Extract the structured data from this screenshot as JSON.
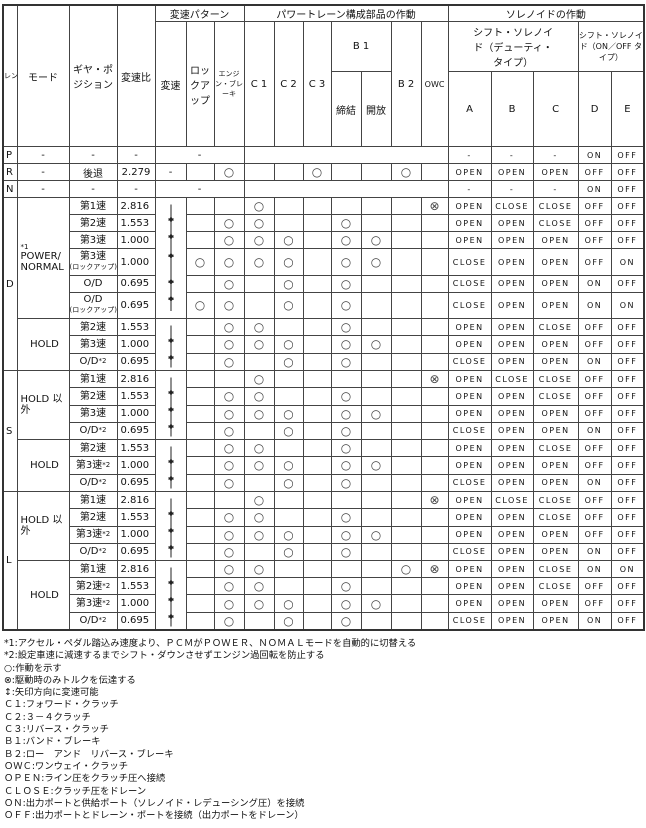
{
  "headers": {
    "range": "レンジ",
    "mode": "モード",
    "gear": "ギヤ・ポジション",
    "ratio": "変速比",
    "shift_pattern": "変速パターン",
    "shift": "変速",
    "lockup": "ロックアップ",
    "engine_brake": "エンジン・ブレーキ",
    "powertrain": "パワートレーン構成部品の作動",
    "c1": "C 1",
    "c2": "C 2",
    "c3": "C 3",
    "b1": "B 1",
    "b1_engage": "締結",
    "b1_release": "開放",
    "b2": "B 2",
    "owc": "OWC",
    "solenoid": "ソレノイドの作動",
    "duty": "シフト・ソレノイド（デューティ・タイプ）",
    "onoff": "シフト・ソレノイド（ON／OFF タイプ）",
    "a": "A",
    "b": "B",
    "c": "C",
    "d": "D",
    "e": "E"
  },
  "simple_rows": [
    {
      "range": "P",
      "mode": "-",
      "gear": "-",
      "ratio": "-",
      "pattern": "-",
      "sol": [
        "-",
        "-",
        "-",
        "ON",
        "OFF"
      ]
    },
    {
      "range": "R",
      "mode": "-",
      "gear": "後退",
      "ratio": "2.279",
      "shift": "-",
      "lockup": "",
      "eb": "○",
      "ops": [
        "",
        "",
        "○",
        "",
        "",
        "○",
        ""
      ],
      "sol": [
        "OPEN",
        "OPEN",
        "OPEN",
        "OFF",
        "OFF"
      ]
    },
    {
      "range": "N",
      "mode": "-",
      "gear": "-",
      "ratio": "-",
      "pattern": "-",
      "sol": [
        "-",
        "-",
        "-",
        "ON",
        "OFF"
      ]
    }
  ],
  "groups": [
    {
      "range": "D",
      "modes": [
        {
          "mode": "POWER/ NORMAL",
          "note": "*1",
          "rows": [
            {
              "gear": "第1速",
              "ratio": "2.816",
              "lu": "",
              "eb": "",
              "ops": [
                "○",
                "",
                "",
                "",
                "",
                "",
                "⊗"
              ],
              "sol": [
                "OPEN",
                "CLOSE",
                "CLOSE",
                "OFF",
                "OFF"
              ]
            },
            {
              "gear": "第2速",
              "ratio": "1.553",
              "lu": "",
              "eb": "○",
              "ops": [
                "○",
                "",
                "",
                "○",
                "",
                "",
                ""
              ],
              "sol": [
                "OPEN",
                "OPEN",
                "CLOSE",
                "OFF",
                "OFF"
              ]
            },
            {
              "gear": "第3速",
              "ratio": "1.000",
              "lu": "",
              "eb": "○",
              "ops": [
                "○",
                "○",
                "",
                "○",
                "○",
                "",
                ""
              ],
              "sol": [
                "OPEN",
                "OPEN",
                "OPEN",
                "OFF",
                "OFF"
              ]
            },
            {
              "gear": "第3速",
              "sub": "(ロックアップ)",
              "ratio": "1.000",
              "lu": "○",
              "eb": "○",
              "ops": [
                "○",
                "○",
                "",
                "○",
                "○",
                "",
                ""
              ],
              "sol": [
                "CLOSE",
                "OPEN",
                "OPEN",
                "OFF",
                "ON"
              ]
            },
            {
              "gear": "O/D",
              "ratio": "0.695",
              "lu": "",
              "eb": "○",
              "ops": [
                "",
                "○",
                "",
                "○",
                "",
                "",
                ""
              ],
              "sol": [
                "CLOSE",
                "OPEN",
                "OPEN",
                "ON",
                "OFF"
              ]
            },
            {
              "gear": "O/D",
              "sub": "(ロックアップ)",
              "ratio": "0.695",
              "lu": "○",
              "eb": "○",
              "ops": [
                "",
                "○",
                "",
                "○",
                "",
                "",
                ""
              ],
              "sol": [
                "CLOSE",
                "OPEN",
                "OPEN",
                "ON",
                "ON"
              ]
            }
          ]
        },
        {
          "mode": "HOLD",
          "rows": [
            {
              "gear": "第2速",
              "ratio": "1.553",
              "lu": "",
              "eb": "○",
              "ops": [
                "○",
                "",
                "",
                "○",
                "",
                "",
                ""
              ],
              "sol": [
                "OPEN",
                "OPEN",
                "CLOSE",
                "OFF",
                "OFF"
              ]
            },
            {
              "gear": "第3速",
              "ratio": "1.000",
              "lu": "",
              "eb": "○",
              "ops": [
                "○",
                "○",
                "",
                "○",
                "○",
                "",
                ""
              ],
              "sol": [
                "OPEN",
                "OPEN",
                "OPEN",
                "OFF",
                "OFF"
              ]
            },
            {
              "gear": "O/D",
              "note": "*2",
              "ratio": "0.695",
              "lu": "",
              "eb": "○",
              "ops": [
                "",
                "○",
                "",
                "○",
                "",
                "",
                ""
              ],
              "sol": [
                "CLOSE",
                "OPEN",
                "OPEN",
                "ON",
                "OFF"
              ]
            }
          ]
        }
      ]
    },
    {
      "range": "S",
      "modes": [
        {
          "mode": "HOLD 以外",
          "rows": [
            {
              "gear": "第1速",
              "ratio": "2.816",
              "lu": "",
              "eb": "",
              "ops": [
                "○",
                "",
                "",
                "",
                "",
                "",
                "⊗"
              ],
              "sol": [
                "OPEN",
                "CLOSE",
                "CLOSE",
                "OFF",
                "OFF"
              ]
            },
            {
              "gear": "第2速",
              "ratio": "1.553",
              "lu": "",
              "eb": "○",
              "ops": [
                "○",
                "",
                "",
                "○",
                "",
                "",
                ""
              ],
              "sol": [
                "OPEN",
                "OPEN",
                "CLOSE",
                "OFF",
                "OFF"
              ]
            },
            {
              "gear": "第3速",
              "ratio": "1.000",
              "lu": "",
              "eb": "○",
              "ops": [
                "○",
                "○",
                "",
                "○",
                "○",
                "",
                ""
              ],
              "sol": [
                "OPEN",
                "OPEN",
                "OPEN",
                "OFF",
                "OFF"
              ]
            },
            {
              "gear": "O/D",
              "note": "*2",
              "ratio": "0.695",
              "lu": "",
              "eb": "○",
              "ops": [
                "",
                "○",
                "",
                "○",
                "",
                "",
                ""
              ],
              "sol": [
                "CLOSE",
                "OPEN",
                "OPEN",
                "ON",
                "OFF"
              ]
            }
          ]
        },
        {
          "mode": "HOLD",
          "rows": [
            {
              "gear": "第2速",
              "ratio": "1.553",
              "lu": "",
              "eb": "○",
              "ops": [
                "○",
                "",
                "",
                "○",
                "",
                "",
                ""
              ],
              "sol": [
                "OPEN",
                "OPEN",
                "CLOSE",
                "OFF",
                "OFF"
              ]
            },
            {
              "gear": "第3速",
              "note": "*2",
              "ratio": "1.000",
              "lu": "",
              "eb": "○",
              "ops": [
                "○",
                "○",
                "",
                "○",
                "○",
                "",
                ""
              ],
              "sol": [
                "OPEN",
                "OPEN",
                "OPEN",
                "OFF",
                "OFF"
              ]
            },
            {
              "gear": "O/D",
              "note": "*2",
              "ratio": "0.695",
              "lu": "",
              "eb": "○",
              "ops": [
                "",
                "○",
                "",
                "○",
                "",
                "",
                ""
              ],
              "sol": [
                "CLOSE",
                "OPEN",
                "OPEN",
                "ON",
                "OFF"
              ]
            }
          ]
        }
      ]
    },
    {
      "range": "L",
      "modes": [
        {
          "mode": "HOLD 以外",
          "rows": [
            {
              "gear": "第1速",
              "ratio": "2.816",
              "lu": "",
              "eb": "",
              "ops": [
                "○",
                "",
                "",
                "",
                "",
                "",
                "⊗"
              ],
              "sol": [
                "OPEN",
                "CLOSE",
                "CLOSE",
                "OFF",
                "OFF"
              ]
            },
            {
              "gear": "第2速",
              "ratio": "1.553",
              "lu": "",
              "eb": "○",
              "ops": [
                "○",
                "",
                "",
                "○",
                "",
                "",
                ""
              ],
              "sol": [
                "OPEN",
                "OPEN",
                "CLOSE",
                "OFF",
                "OFF"
              ]
            },
            {
              "gear": "第3速",
              "note": "*2",
              "ratio": "1.000",
              "lu": "",
              "eb": "○",
              "ops": [
                "○",
                "○",
                "",
                "○",
                "○",
                "",
                ""
              ],
              "sol": [
                "OPEN",
                "OPEN",
                "OPEN",
                "OFF",
                "OFF"
              ]
            },
            {
              "gear": "O/D",
              "note": "*2",
              "ratio": "0.695",
              "lu": "",
              "eb": "○",
              "ops": [
                "",
                "○",
                "",
                "○",
                "",
                "",
                ""
              ],
              "sol": [
                "CLOSE",
                "OPEN",
                "OPEN",
                "ON",
                "OFF"
              ]
            }
          ]
        },
        {
          "mode": "HOLD",
          "rows": [
            {
              "gear": "第1速",
              "ratio": "2.816",
              "lu": "",
              "eb": "○",
              "ops": [
                "○",
                "",
                "",
                "",
                "",
                "○",
                "⊗"
              ],
              "sol": [
                "OPEN",
                "OPEN",
                "CLOSE",
                "ON",
                "ON"
              ]
            },
            {
              "gear": "第2速",
              "note": "*2",
              "ratio": "1.553",
              "lu": "",
              "eb": "○",
              "ops": [
                "○",
                "",
                "",
                "○",
                "",
                "",
                ""
              ],
              "sol": [
                "OPEN",
                "OPEN",
                "CLOSE",
                "OFF",
                "OFF"
              ]
            },
            {
              "gear": "第3速",
              "note": "*2",
              "ratio": "1.000",
              "lu": "",
              "eb": "○",
              "ops": [
                "○",
                "○",
                "",
                "○",
                "○",
                "",
                ""
              ],
              "sol": [
                "OPEN",
                "OPEN",
                "OPEN",
                "OFF",
                "OFF"
              ]
            },
            {
              "gear": "O/D",
              "note": "*2",
              "ratio": "0.695",
              "lu": "",
              "eb": "○",
              "ops": [
                "",
                "○",
                "",
                "○",
                "",
                "",
                ""
              ],
              "sol": [
                "CLOSE",
                "OPEN",
                "OPEN",
                "ON",
                "OFF"
              ]
            }
          ]
        }
      ]
    }
  ],
  "footnotes": [
    "*1:アクセル・ペダル踏込み速度より、ＰＣＭがＰＯＷＥＲ、ＮＯＭＡＬモードを自動的に切替える",
    "*2:設定車速に減速するまでシフト・ダウンさせずエンジン過回転を防止する",
    "○:作動を示す",
    "⊗:駆動時のみトルクを伝達する",
    "↕:矢印方向に変速可能",
    "Ｃ１:フォワード・クラッチ",
    "Ｃ２:３－４クラッチ",
    "Ｃ３:リバース・クラッチ",
    "Ｂ１:バンド・ブレーキ",
    "Ｂ２:ロー　アンド　リバース・ブレーキ",
    "ＯＷＣ:ワンウェイ・クラッチ",
    "ＯＰＥＮ:ライン圧をクラッチ圧へ接続",
    "ＣＬＯＳＥ:クラッチ圧をドレーン",
    "ＯＮ:出力ポートと供給ポート（ソレノイド・レデューシング圧）を接続",
    "ＯＦＦ:出力ポートとドレーン・ポートを接続（出力ポートをドレーン）"
  ]
}
